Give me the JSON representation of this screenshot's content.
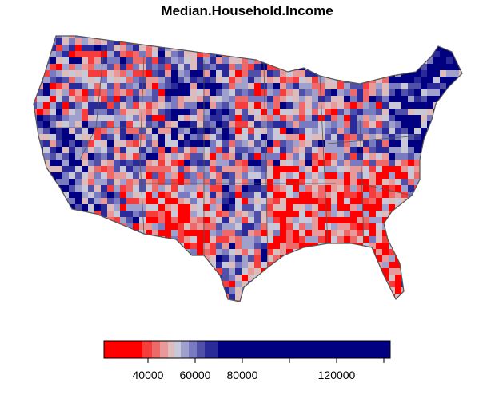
{
  "chart_data": {
    "type": "choropleth",
    "title": "Median.Household.Income",
    "colorbar": {
      "breaks": [
        21356,
        37627,
        41695,
        45085,
        48475,
        51186,
        53898,
        57288,
        60678,
        64068,
        69492,
        142712
      ],
      "colors": [
        "#ff0000",
        "#f53d3d",
        "#ee6a6a",
        "#e89999",
        "#dcbcbc",
        "#c8c8d8",
        "#a0a0cc",
        "#7a7ac0",
        "#5050a8",
        "#2a2a98",
        "#000080"
      ],
      "xticks": [
        40000,
        60000,
        80000,
        {
          "value": 100000,
          "label": null
        },
        120000,
        {
          "value": 140000,
          "label": null
        }
      ]
    }
  }
}
